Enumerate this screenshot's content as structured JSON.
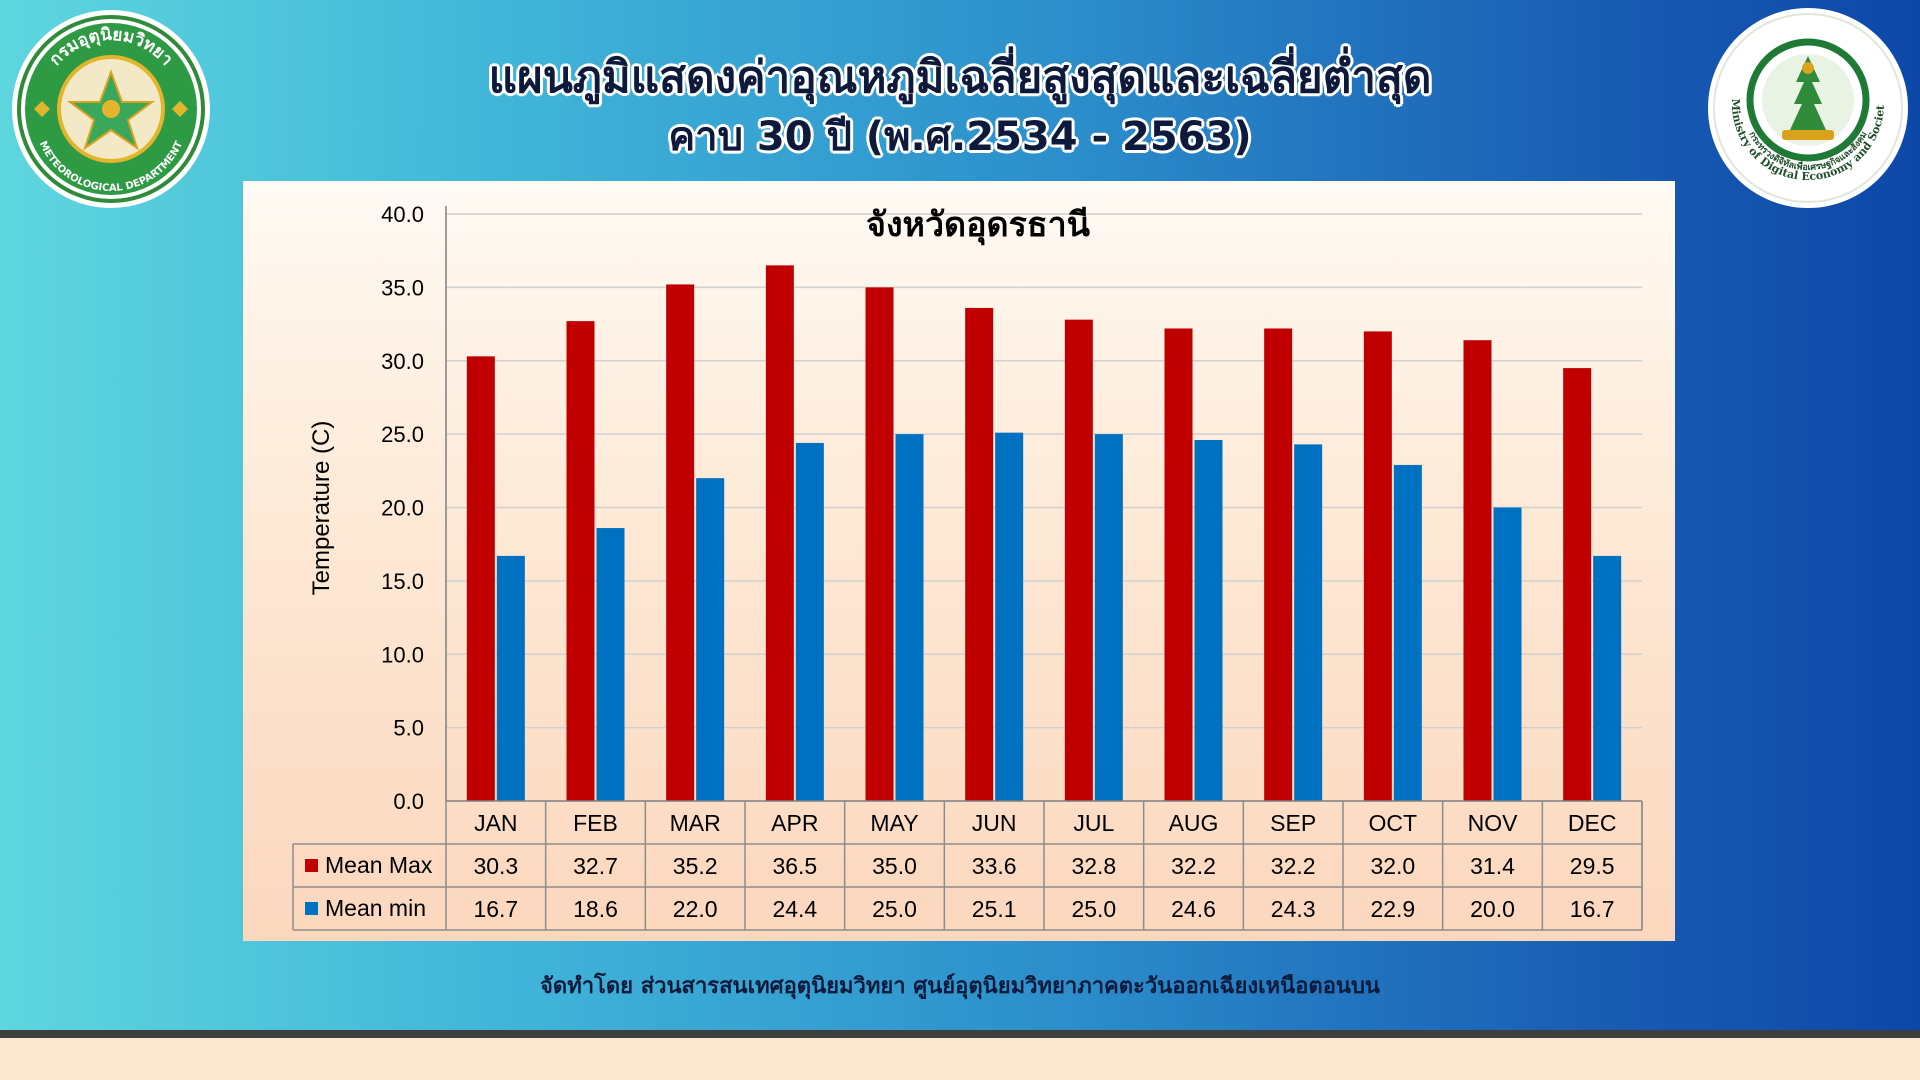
{
  "header": {
    "title": "แผนภูมิแสดงค่าอุณหภูมิเฉลี่ยสูงสุดและเฉลี่ยต่ำสุด",
    "subtitle": "คาบ 30 ปี (พ.ศ.2534 - 2563)"
  },
  "logos": {
    "left": {
      "icon": "meteorological-department-seal-icon",
      "text_top": "กรมอุตุนิยมวิทยา",
      "text_bottom": "METEOROLOGICAL DEPARTMENT"
    },
    "right": {
      "icon": "ministry-digital-economy-seal-icon",
      "text_thai": "กระทรวงดิจิทัลเพื่อเศรษฐกิจและสังคม",
      "text_en": "Ministry of Digital Economy and Society"
    }
  },
  "chart_data": {
    "type": "bar",
    "title": "จังหวัดอุดรธานี",
    "ylabel": "Temperature (C)",
    "xlabel": "",
    "ylim": [
      0,
      40
    ],
    "yticks": [
      "0.0",
      "5.0",
      "10.0",
      "15.0",
      "20.0",
      "25.0",
      "30.0",
      "35.0",
      "40.0"
    ],
    "grid": true,
    "categories": [
      "JAN",
      "FEB",
      "MAR",
      "APR",
      "MAY",
      "JUN",
      "JUL",
      "AUG",
      "SEP",
      "OCT",
      "NOV",
      "DEC"
    ],
    "series": [
      {
        "name": "Mean Max",
        "color": "#c00000",
        "values": [
          30.3,
          32.7,
          35.2,
          36.5,
          35.0,
          33.6,
          32.8,
          32.2,
          32.2,
          32.0,
          31.4,
          29.5
        ],
        "labels": [
          "30.3",
          "32.7",
          "35.2",
          "36.5",
          "35.0",
          "33.6",
          "32.8",
          "32.2",
          "32.2",
          "32.0",
          "31.4",
          "29.5"
        ]
      },
      {
        "name": "Mean min",
        "color": "#0070c0",
        "values": [
          16.7,
          18.6,
          22.0,
          24.4,
          25.0,
          25.1,
          25.0,
          24.6,
          24.3,
          22.9,
          20.0,
          16.7
        ],
        "labels": [
          "16.7",
          "18.6",
          "22.0",
          "24.4",
          "25.0",
          "25.1",
          "25.0",
          "24.6",
          "24.3",
          "22.9",
          "20.0",
          "16.7"
        ]
      }
    ],
    "legend": "data-table"
  },
  "footer": {
    "credit": "จัดทำโดย ส่วนสารสนเทศอุตุนิยมวิทยา ศูนย์อุตุนิยมวิทยาภาคตะวันออกเฉียงเหนือตอนบน"
  }
}
